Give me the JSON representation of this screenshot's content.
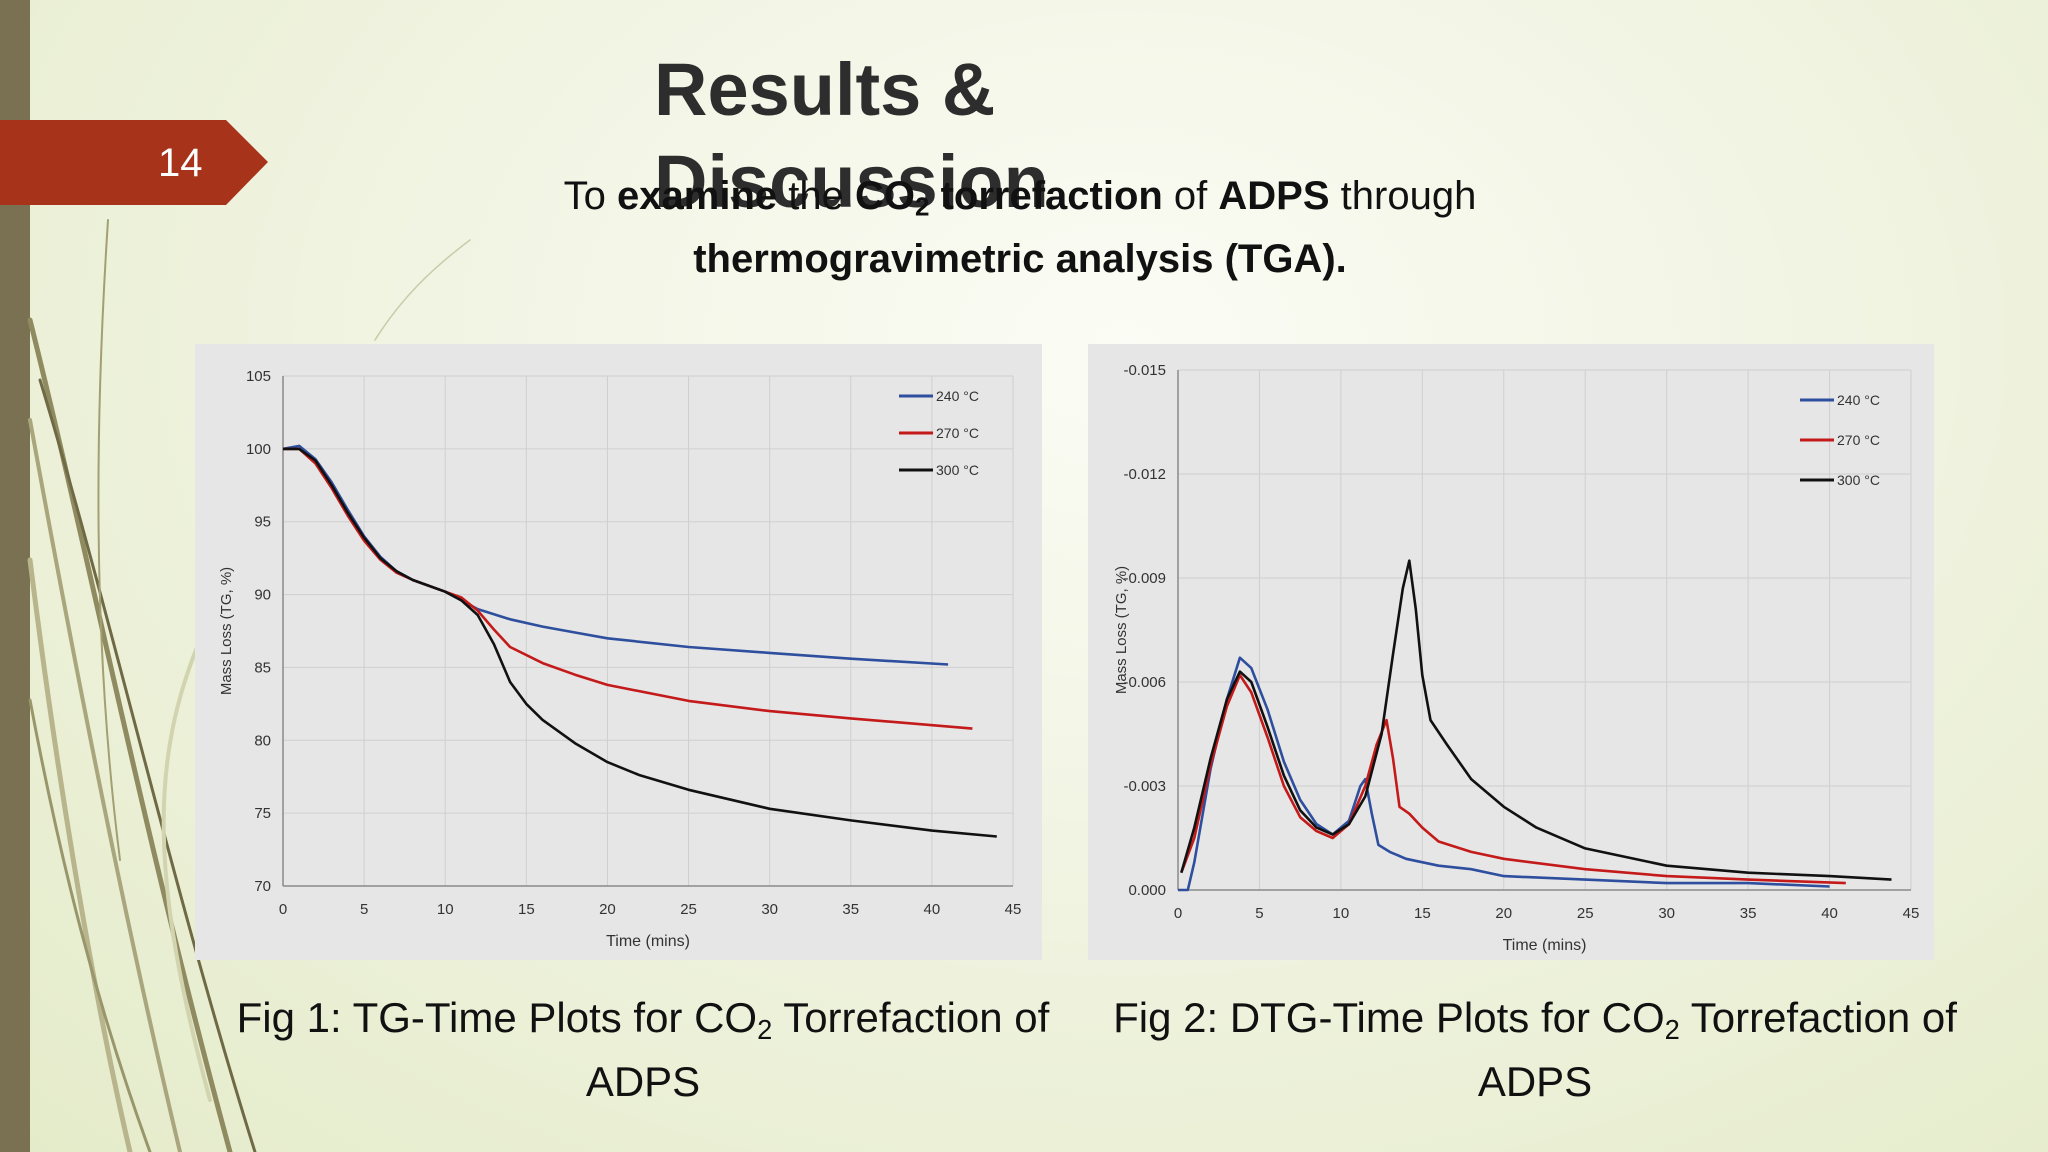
{
  "slide": {
    "number": "14",
    "title": "Results & Discussion",
    "subtitle": {
      "p1": "To ",
      "b1": "examine",
      "p2": " the ",
      "b2": "CO",
      "b2sub": "2",
      "b3": " torrefaction",
      "p3": " of ",
      "b4": "ADPS",
      "p4": " through",
      "b5": "thermogravimetric analysis (TGA)."
    }
  },
  "captions": [
    {
      "pre": "Fig 1: TG-Time Plots for CO",
      "sub": "2",
      "post": " Torrefaction of ADPS"
    },
    {
      "pre": "Fig 2: DTG-Time Plots for CO",
      "sub": "2",
      "post": " Torrefaction of ADPS"
    }
  ],
  "chart_data": [
    {
      "type": "line",
      "xlabel": "Time (mins)",
      "ylabel": "Mass Loss (TG, %)",
      "xlim": [
        0,
        45
      ],
      "ylim": [
        70,
        105
      ],
      "xticks": [
        0,
        5,
        10,
        15,
        20,
        25,
        30,
        35,
        40,
        45
      ],
      "yticks": [
        70,
        75,
        80,
        85,
        90,
        95,
        100,
        105
      ],
      "ytick_labels": [
        "70",
        "75",
        "80",
        "85",
        "90",
        "95",
        "100",
        "105"
      ],
      "grid": true,
      "legend": "top-right",
      "series": [
        {
          "name": "240 °C",
          "color": "#2e4e9e",
          "x": [
            0,
            1,
            2,
            3,
            4,
            5,
            6,
            7,
            8,
            10,
            12,
            14,
            16,
            18,
            20,
            25,
            30,
            35,
            41
          ],
          "y": [
            100,
            100.2,
            99.3,
            97.7,
            95.8,
            94,
            92.6,
            91.6,
            91,
            90.2,
            89,
            88.3,
            87.8,
            87.4,
            87,
            86.4,
            86,
            85.6,
            85.2
          ]
        },
        {
          "name": "270 °C",
          "color": "#c41a1a",
          "x": [
            0,
            1,
            2,
            3,
            4,
            5,
            6,
            7,
            8,
            10,
            11,
            12,
            13,
            14,
            16,
            18,
            20,
            25,
            30,
            35,
            42.5
          ],
          "y": [
            100,
            100,
            99,
            97.3,
            95.4,
            93.7,
            92.4,
            91.5,
            91,
            90.2,
            89.8,
            88.9,
            87.6,
            86.4,
            85.3,
            84.5,
            83.8,
            82.7,
            82,
            81.5,
            80.8
          ]
        },
        {
          "name": "300 °C",
          "color": "#111111",
          "x": [
            0,
            1,
            2,
            3,
            4,
            5,
            6,
            7,
            8,
            10,
            11,
            12,
            13,
            14,
            15,
            16,
            18,
            20,
            22,
            25,
            30,
            35,
            40,
            44
          ],
          "y": [
            100,
            100,
            99.2,
            97.5,
            95.6,
            93.9,
            92.5,
            91.6,
            91,
            90.2,
            89.6,
            88.6,
            86.6,
            84,
            82.5,
            81.4,
            79.8,
            78.5,
            77.6,
            76.6,
            75.3,
            74.5,
            73.8,
            73.4
          ]
        }
      ]
    },
    {
      "type": "line",
      "xlabel": "Time (mins)",
      "ylabel": "Mass Loss (TG, %)",
      "xlim": [
        0,
        45
      ],
      "ylim": [
        0,
        -0.015
      ],
      "xticks": [
        0,
        5,
        10,
        15,
        20,
        25,
        30,
        35,
        40,
        45
      ],
      "yticks": [
        0,
        -0.003,
        -0.006,
        -0.009,
        -0.012,
        -0.015
      ],
      "ytick_labels": [
        "0.000",
        "-0.003",
        "-0.006",
        "-0.009",
        "-0.012",
        "-0.015"
      ],
      "grid": true,
      "legend": "top-right",
      "series": [
        {
          "name": "240 °C",
          "color": "#2e4e9e",
          "x": [
            0,
            0.6,
            1,
            2,
            3,
            3.8,
            4.5,
            5.5,
            6.5,
            7.5,
            8.5,
            9.5,
            10.5,
            11.2,
            11.5,
            11.9,
            12.3,
            13,
            14,
            16,
            18,
            20,
            25,
            30,
            35,
            40
          ],
          "y": [
            0,
            0,
            -0.0008,
            -0.0035,
            -0.0055,
            -0.0067,
            -0.0064,
            -0.0052,
            -0.0037,
            -0.0026,
            -0.0019,
            -0.0016,
            -0.002,
            -0.003,
            -0.0032,
            -0.0022,
            -0.0013,
            -0.0011,
            -0.0009,
            -0.0007,
            -0.0006,
            -0.0004,
            -0.0003,
            -0.0002,
            -0.0002,
            -0.0001
          ]
        },
        {
          "name": "270 °C",
          "color": "#c41a1a",
          "x": [
            0.2,
            1,
            2,
            3,
            3.8,
            4.5,
            5.5,
            6.5,
            7.5,
            8.5,
            9.5,
            10.5,
            11.5,
            12.2,
            12.8,
            13.2,
            13.6,
            14.2,
            15,
            16,
            18,
            20,
            25,
            30,
            35,
            41
          ],
          "y": [
            -0.0005,
            -0.0015,
            -0.0036,
            -0.0053,
            -0.0062,
            -0.0057,
            -0.0044,
            -0.003,
            -0.0021,
            -0.0017,
            -0.0015,
            -0.0019,
            -0.003,
            -0.0042,
            -0.0049,
            -0.0038,
            -0.0024,
            -0.0022,
            -0.0018,
            -0.0014,
            -0.0011,
            -0.0009,
            -0.0006,
            -0.0004,
            -0.0003,
            -0.0002
          ]
        },
        {
          "name": "300 °C",
          "color": "#111111",
          "x": [
            0.2,
            1,
            2,
            3,
            3.8,
            4.5,
            5.5,
            6.5,
            7.5,
            8.5,
            9.5,
            10.5,
            11.5,
            12.5,
            13.2,
            13.8,
            14.2,
            14.6,
            15,
            15.5,
            16.5,
            18,
            20,
            22,
            25,
            30,
            35,
            40,
            43.8
          ],
          "y": [
            -0.0005,
            -0.0018,
            -0.0038,
            -0.0055,
            -0.0063,
            -0.006,
            -0.0047,
            -0.0033,
            -0.0023,
            -0.0018,
            -0.0016,
            -0.0019,
            -0.0027,
            -0.0045,
            -0.0068,
            -0.0087,
            -0.0095,
            -0.0081,
            -0.0062,
            -0.0049,
            -0.0042,
            -0.0032,
            -0.0024,
            -0.0018,
            -0.0012,
            -0.0007,
            -0.0005,
            -0.0004,
            -0.0003
          ]
        }
      ]
    }
  ]
}
